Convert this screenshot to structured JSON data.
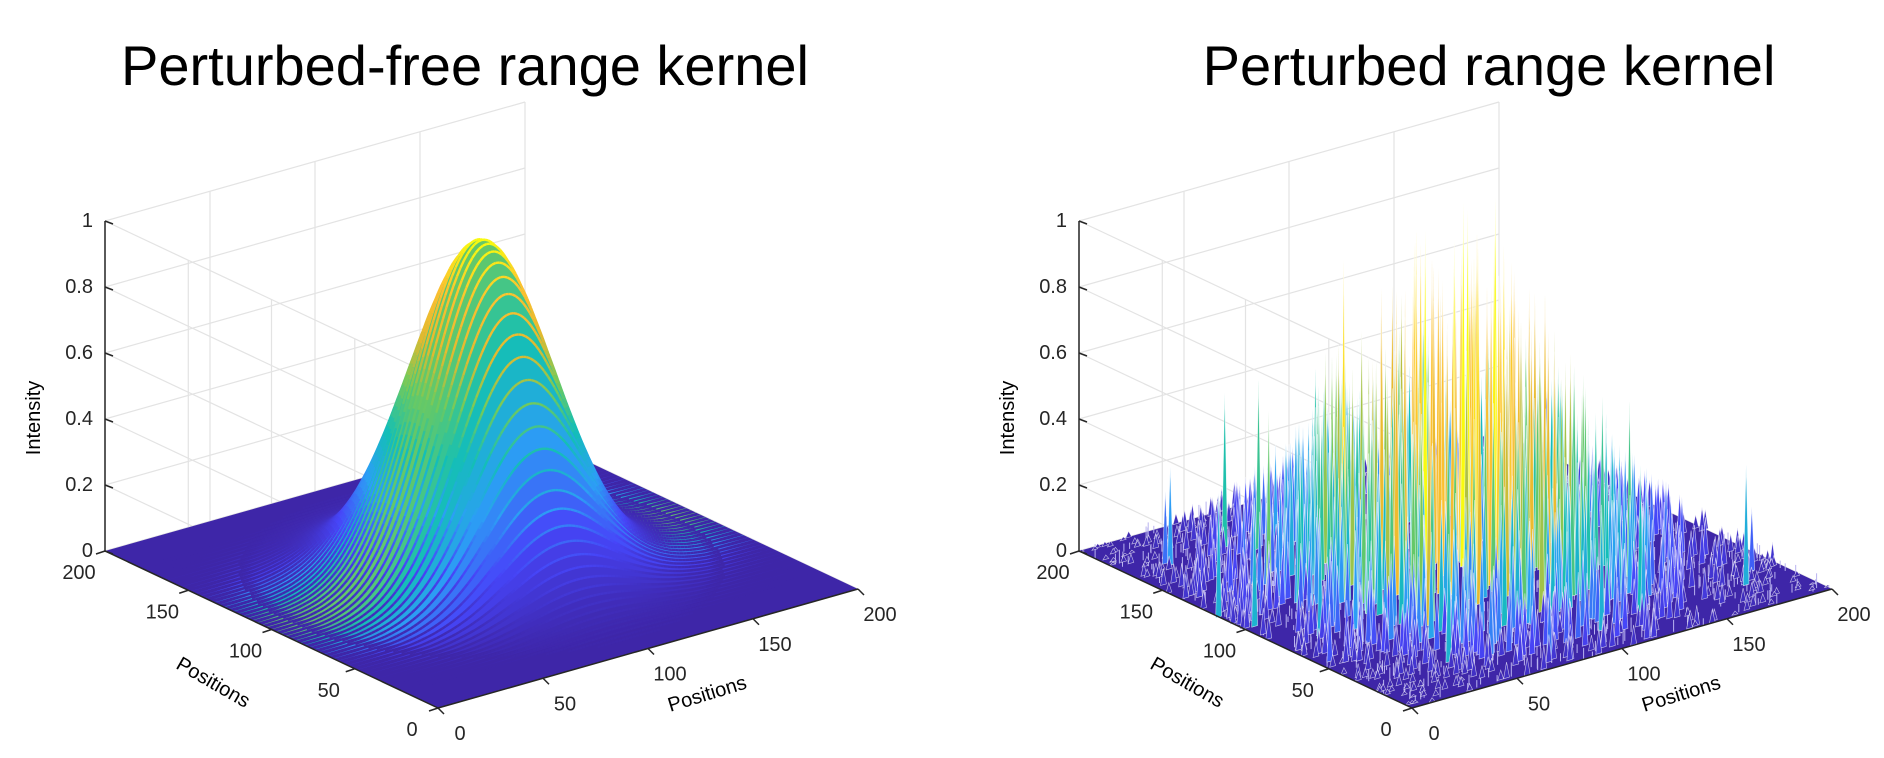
{
  "chart_data": [
    {
      "type": "surface",
      "title": "Perturbed-free range kernel",
      "xlabel": "Positions",
      "ylabel": "Positions",
      "zlabel": "Intensity",
      "x_range": [
        0,
        200
      ],
      "y_range": [
        0,
        200
      ],
      "z_range": [
        0,
        1
      ],
      "x_ticks": [
        "0",
        "50",
        "100",
        "150",
        "200"
      ],
      "y_ticks": [
        "0",
        "50",
        "100",
        "150",
        "200"
      ],
      "z_ticks": [
        "0",
        "0.2",
        "0.4",
        "0.6",
        "0.8",
        "1"
      ],
      "grid": true,
      "colormap": "parula",
      "colormap_colors": [
        "#3e26a8",
        "#4745f8",
        "#2c9ff5",
        "#13bfb6",
        "#72ca5b",
        "#e5b92e",
        "#fdc030",
        "#f9fb0e"
      ],
      "function": "gaussian",
      "peak": 1.0,
      "center": [
        100,
        100
      ],
      "sigma": 27
    },
    {
      "type": "surface",
      "title": "Perturbed range kernel",
      "xlabel": "Positions",
      "ylabel": "Positions",
      "zlabel": "Intensity",
      "x_range": [
        0,
        200
      ],
      "y_range": [
        0,
        200
      ],
      "z_range": [
        0,
        1
      ],
      "x_ticks": [
        "0",
        "50",
        "100",
        "150",
        "200"
      ],
      "y_ticks": [
        "0",
        "50",
        "100",
        "150",
        "200"
      ],
      "z_ticks": [
        "0",
        "0.2",
        "0.4",
        "0.6",
        "0.8",
        "1"
      ],
      "grid": true,
      "colormap": "parula",
      "colormap_colors": [
        "#3e26a8",
        "#4745f8",
        "#2c9ff5",
        "#13bfb6",
        "#72ca5b",
        "#e5b92e",
        "#fdc030",
        "#f9fb0e"
      ],
      "function": "gaussian with random spike perturbation",
      "peak": 1.1,
      "center": [
        100,
        100
      ],
      "sigma": 45
    }
  ]
}
